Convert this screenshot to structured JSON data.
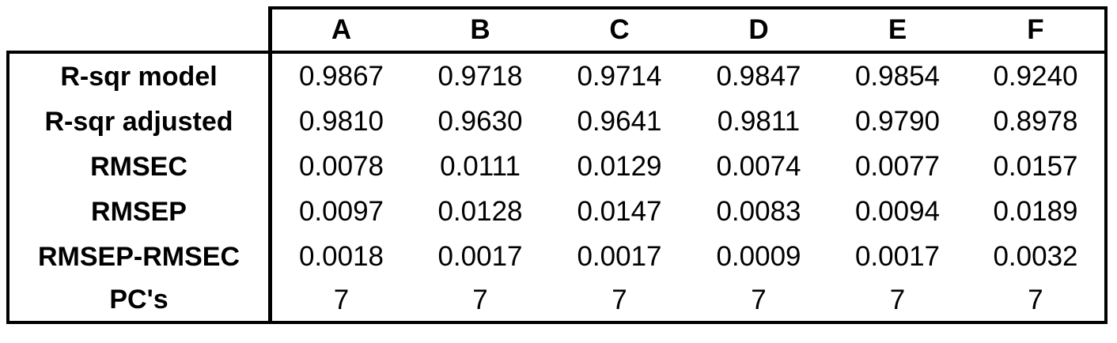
{
  "table": {
    "columns": [
      "A",
      "B",
      "C",
      "D",
      "E",
      "F"
    ],
    "rows": [
      {
        "label": "R-sqr model",
        "values": [
          "0.9867",
          "0.9718",
          "0.9714",
          "0.9847",
          "0.9854",
          "0.9240"
        ]
      },
      {
        "label": "R-sqr adjusted",
        "values": [
          "0.9810",
          "0.9630",
          "0.9641",
          "0.9811",
          "0.9790",
          "0.8978"
        ]
      },
      {
        "label": "RMSEC",
        "values": [
          "0.0078",
          "0.0111",
          "0.0129",
          "0.0074",
          "0.0077",
          "0.0157"
        ]
      },
      {
        "label": "RMSEP",
        "values": [
          "0.0097",
          "0.0128",
          "0.0147",
          "0.0083",
          "0.0094",
          "0.0189"
        ]
      },
      {
        "label": "RMSEP-RMSEC",
        "values": [
          "0.0018",
          "0.0017",
          "0.0017",
          "0.0009",
          "0.0017",
          "0.0032"
        ]
      },
      {
        "label": "PC's",
        "values": [
          "7",
          "7",
          "7",
          "7",
          "7",
          "7"
        ]
      }
    ]
  }
}
